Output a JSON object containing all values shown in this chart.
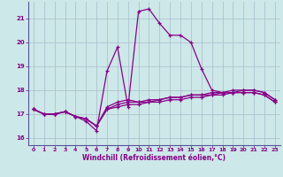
{
  "xlabel": "Windchill (Refroidissement éolien,°C)",
  "bg_color": "#cce8e8",
  "line_color": "#880088",
  "grid_color": "#aabbcc",
  "xlim": [
    -0.5,
    23.5
  ],
  "ylim": [
    15.7,
    21.7
  ],
  "yticks": [
    16,
    17,
    18,
    19,
    20,
    21
  ],
  "xticks": [
    0,
    1,
    2,
    3,
    4,
    5,
    6,
    7,
    8,
    9,
    10,
    11,
    12,
    13,
    14,
    15,
    16,
    17,
    18,
    19,
    20,
    21,
    22,
    23
  ],
  "series": [
    [
      17.2,
      17.0,
      17.0,
      17.1,
      16.9,
      16.7,
      16.3,
      18.8,
      19.8,
      17.3,
      21.3,
      21.4,
      20.8,
      20.3,
      20.3,
      20.0,
      18.9,
      18.0,
      17.9,
      17.9,
      18.0,
      18.0,
      17.9,
      17.6
    ],
    [
      17.2,
      17.0,
      17.0,
      17.1,
      16.9,
      16.8,
      16.5,
      17.3,
      17.5,
      17.6,
      17.5,
      17.5,
      17.6,
      17.7,
      17.7,
      17.8,
      17.8,
      17.8,
      17.9,
      18.0,
      18.0,
      18.0,
      17.9,
      17.6
    ],
    [
      17.2,
      17.0,
      17.0,
      17.1,
      16.9,
      16.8,
      16.5,
      17.2,
      17.4,
      17.5,
      17.5,
      17.6,
      17.6,
      17.7,
      17.7,
      17.8,
      17.8,
      17.9,
      17.9,
      17.9,
      17.9,
      17.9,
      17.8,
      17.5
    ],
    [
      17.2,
      17.0,
      17.0,
      17.1,
      16.9,
      16.8,
      16.5,
      17.2,
      17.3,
      17.4,
      17.4,
      17.5,
      17.5,
      17.6,
      17.6,
      17.7,
      17.7,
      17.8,
      17.8,
      17.9,
      17.9,
      17.9,
      17.8,
      17.5
    ]
  ]
}
